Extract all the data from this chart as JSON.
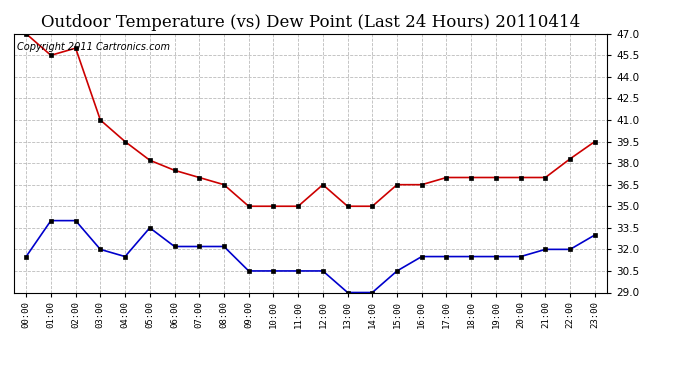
{
  "title": "Outdoor Temperature (vs) Dew Point (Last 24 Hours) 20110414",
  "copyright_text": "Copyright 2011 Cartronics.com",
  "x_labels": [
    "00:00",
    "01:00",
    "02:00",
    "03:00",
    "04:00",
    "05:00",
    "06:00",
    "07:00",
    "08:00",
    "09:00",
    "10:00",
    "11:00",
    "12:00",
    "13:00",
    "14:00",
    "15:00",
    "16:00",
    "17:00",
    "18:00",
    "19:00",
    "20:00",
    "21:00",
    "22:00",
    "23:00"
  ],
  "temp_data": [
    47.0,
    45.5,
    46.0,
    41.0,
    39.5,
    38.2,
    37.5,
    37.0,
    36.5,
    35.0,
    35.0,
    35.0,
    36.5,
    35.0,
    35.0,
    36.5,
    36.5,
    37.0,
    37.0,
    37.0,
    37.0,
    37.0,
    38.3,
    39.5
  ],
  "dew_data": [
    31.5,
    34.0,
    34.0,
    32.0,
    31.5,
    33.5,
    32.2,
    32.2,
    32.2,
    30.5,
    30.5,
    30.5,
    30.5,
    29.0,
    29.0,
    30.5,
    31.5,
    31.5,
    31.5,
    31.5,
    31.5,
    32.0,
    32.0,
    33.0
  ],
  "temp_color": "#cc0000",
  "dew_color": "#0000cc",
  "ylim_min": 29.0,
  "ylim_max": 47.0,
  "ytick_step": 1.5,
  "bg_color": "#ffffff",
  "grid_color": "#aaaaaa",
  "title_fontsize": 12,
  "copyright_fontsize": 7,
  "marker": "s",
  "marker_size": 3,
  "line_width": 1.2
}
